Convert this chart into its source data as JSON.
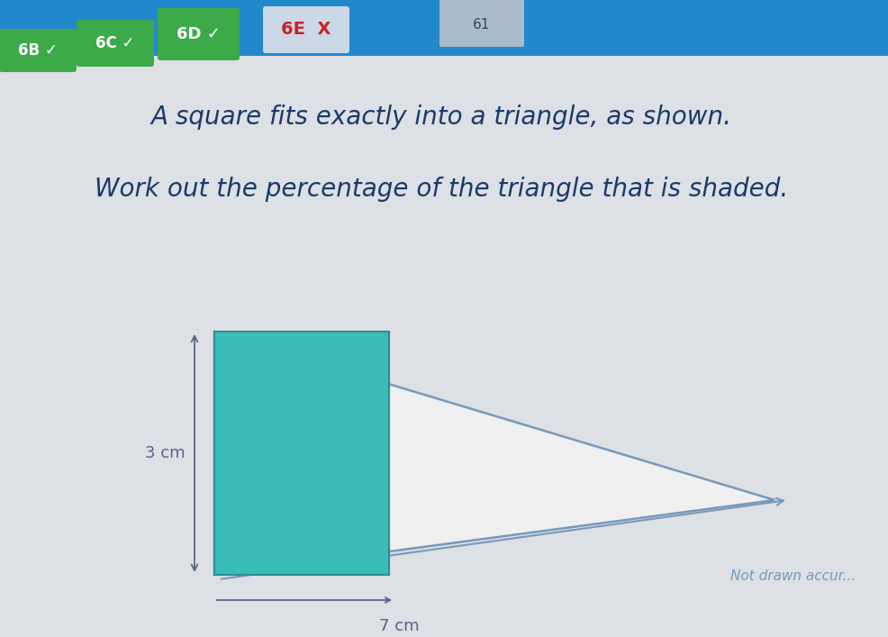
{
  "bg_color": "#dde0e5",
  "top_bar_color": "#2288cc",
  "line1": "A square fits exactly into a triangle, as shown.",
  "line2": "Work out the percentage of the triangle that is shaded.",
  "line_color": "#1a3a6a",
  "line1_fontsize": 20,
  "line2_fontsize": 20,
  "square_color": "#3abcb8",
  "square_edge_color": "#2a9090",
  "triangle_face_color": "#f0f0f0",
  "triangle_line_color": "#7799bb",
  "label_3cm": "3 cm",
  "label_7cm": "7 cm",
  "label_not_drawn": "Not drawn accur...",
  "label_color": "#556688",
  "note_color": "#7799bb",
  "btn_6b_color": "#3daa4a",
  "btn_6c_color": "#3daa4a",
  "btn_6d_color": "#3daa4a",
  "btn_6e_bg": "#ccd8e8",
  "btn_6e_text": "#cc2222"
}
